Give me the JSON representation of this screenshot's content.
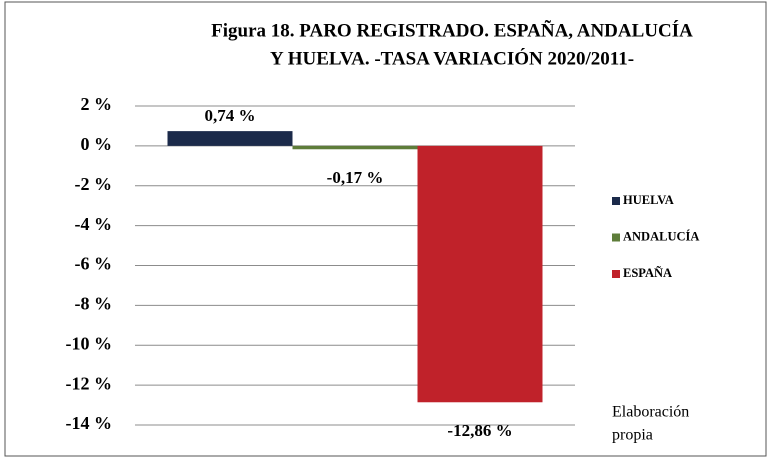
{
  "chart_data": {
    "type": "bar",
    "title": [
      "Figura 18. PARO REGISTRADO. ESPAÑA, ANDALUCÍA",
      "Y HUELVA. -TASA VARIACIÓN 2020/2011-"
    ],
    "categories": [
      null
    ],
    "series": [
      {
        "name": "HUELVA",
        "color": "#1b2a4a",
        "values": [
          0.74
        ],
        "value_labels": [
          "0,74 %"
        ]
      },
      {
        "name": "ANDALUCÍA",
        "color": "#5e7d3a",
        "values": [
          -0.17
        ],
        "value_labels": [
          "-0,17 %"
        ]
      },
      {
        "name": "ESPAÑA",
        "color": "#c0222a",
        "values": [
          -12.86
        ],
        "value_labels": [
          "-12,86 %"
        ]
      }
    ],
    "ylim": [
      -14,
      2
    ],
    "yticks": [
      {
        "value": 2,
        "label": "2 %"
      },
      {
        "value": 0,
        "label": "0 %"
      },
      {
        "value": -2,
        "label": "-2 %"
      },
      {
        "value": -4,
        "label": "-4 %"
      },
      {
        "value": -6,
        "label": "-6 %"
      },
      {
        "value": -8,
        "label": "-8 %"
      },
      {
        "value": -10,
        "label": "-10 %"
      },
      {
        "value": -12,
        "label": "-12 %"
      },
      {
        "value": -14,
        "label": "-14 %"
      }
    ],
    "grid": true,
    "legend": "right",
    "annotation": [
      "Elaboración",
      "propia"
    ]
  }
}
